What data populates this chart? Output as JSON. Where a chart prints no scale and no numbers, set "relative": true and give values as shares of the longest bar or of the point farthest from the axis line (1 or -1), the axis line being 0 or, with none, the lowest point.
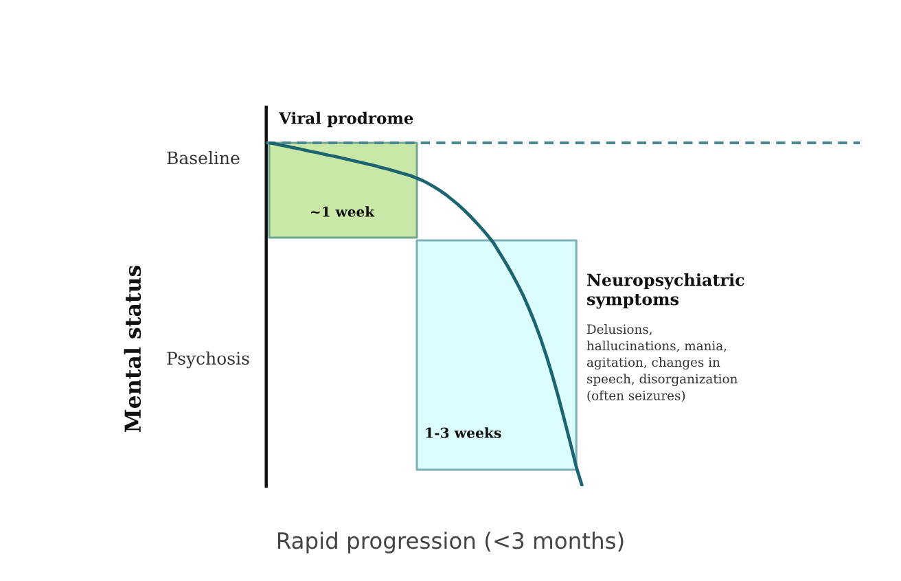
{
  "chart_data": {
    "type": "line",
    "relative": true,
    "xlabel": "Rapid progression (<3 months)",
    "categories": [
      null,
      null,
      null,
      null,
      null,
      null,
      null,
      null,
      null,
      null,
      null,
      null,
      null,
      null,
      null,
      null,
      null,
      null,
      null,
      null,
      null,
      null,
      null,
      null,
      null,
      null,
      null,
      null,
      null,
      null,
      null,
      null,
      null,
      null,
      null,
      null,
      null,
      null,
      null,
      null,
      null,
      null,
      null,
      null,
      null,
      null,
      null,
      null,
      null,
      null,
      null,
      null,
      null,
      null,
      null,
      null,
      null,
      null,
      null,
      null,
      null,
      null,
      null,
      null,
      null,
      null,
      null,
      null,
      null,
      null,
      null,
      null,
      null,
      null,
      null,
      null,
      null,
      null,
      null,
      null,
      null,
      null,
      null,
      null,
      null,
      null,
      null,
      null,
      null,
      null,
      null,
      null,
      null,
      null,
      null,
      null,
      null,
      null,
      null,
      null,
      null
    ],
    "series": [
      {
        "color": "#c9e7a7",
        "values": [
          null,
          null,
          null,
          null,
          null,
          null,
          null,
          null,
          null,
          null,
          null,
          null,
          null,
          null,
          null,
          null,
          null,
          null,
          null,
          null,
          null,
          null,
          null,
          null,
          null,
          null,
          null,
          null,
          null,
          null,
          null,
          null,
          null,
          null,
          null,
          null,
          null,
          null,
          null,
          null,
          null,
          null,
          null,
          null,
          null,
          null,
          null,
          null,
          null,
          null,
          null,
          null,
          null,
          null,
          null,
          null,
          null,
          null,
          null,
          null,
          null,
          null,
          null,
          null,
          null,
          null,
          null,
          null,
          null,
          null,
          null,
          null,
          null,
          null,
          null,
          null,
          null,
          null,
          null,
          null,
          null,
          null,
          null,
          null,
          null,
          null,
          null,
          null,
          null,
          null,
          null,
          null,
          null,
          null,
          null,
          null,
          null,
          null,
          null,
          null,
          null
        ],
        "lower": [
          0.724,
          0.724,
          0.724,
          0.724,
          0.724,
          0.724,
          0.724,
          0.724,
          0.724,
          0.724,
          0.724,
          0.724,
          0.724,
          0.724,
          0.724,
          0.724,
          0.724,
          0.724,
          0.724,
          0.724,
          0.724,
          0.724,
          0.724,
          0.724,
          0.724,
          0.724,
          null,
          null,
          null,
          null,
          null,
          null,
          null,
          null,
          null,
          null,
          null,
          null,
          null,
          null,
          null,
          null,
          null,
          null,
          null,
          null,
          null,
          null,
          null,
          null,
          null,
          null,
          null,
          null,
          null,
          null,
          null,
          null,
          null,
          null,
          null,
          null,
          null,
          null,
          null,
          null,
          null,
          null,
          null,
          null,
          null,
          null,
          null,
          null,
          null,
          null,
          null,
          null,
          null,
          null,
          null,
          null,
          null,
          null,
          null,
          null,
          null,
          null,
          null,
          null,
          null,
          null,
          null,
          null,
          null,
          null,
          null,
          null,
          null,
          null,
          null
        ],
        "upper": [
          1,
          1,
          1,
          1,
          1,
          1,
          1,
          1,
          1,
          1,
          1,
          1,
          1,
          1,
          1,
          1,
          1,
          1,
          1,
          1,
          1,
          1,
          1,
          1,
          1,
          1,
          null,
          null,
          null,
          null,
          null,
          null,
          null,
          null,
          null,
          null,
          null,
          null,
          null,
          null,
          null,
          null,
          null,
          null,
          null,
          null,
          null,
          null,
          null,
          null,
          null,
          null,
          null,
          null,
          null,
          null,
          null,
          null,
          null,
          null,
          null,
          null,
          null,
          null,
          null,
          null,
          null,
          null,
          null,
          null,
          null,
          null,
          null,
          null,
          null,
          null,
          null,
          null,
          null,
          null,
          null,
          null,
          null,
          null,
          null,
          null,
          null,
          null,
          null,
          null,
          null,
          null,
          null,
          null,
          null,
          null,
          null,
          null,
          null,
          null,
          null
        ]
      },
      {
        "color": "#dcfdfd",
        "values": [
          null,
          null,
          null,
          null,
          null,
          null,
          null,
          null,
          null,
          null,
          null,
          null,
          null,
          null,
          null,
          null,
          null,
          null,
          null,
          null,
          null,
          null,
          null,
          null,
          null,
          null,
          null,
          null,
          null,
          null,
          null,
          null,
          null,
          null,
          null,
          null,
          null,
          null,
          null,
          null,
          null,
          null,
          null,
          null,
          null,
          null,
          null,
          null,
          null,
          null,
          null,
          null,
          null,
          null,
          null,
          null,
          null,
          null,
          null,
          null,
          null,
          null,
          null,
          null,
          null,
          null,
          null,
          null,
          null,
          null,
          null,
          null,
          null,
          null,
          null,
          null,
          null,
          null,
          null,
          null,
          null,
          null,
          null,
          null,
          null,
          null,
          null,
          null,
          null,
          null,
          null,
          null,
          null,
          null,
          null,
          null,
          null,
          null,
          null,
          null,
          null
        ],
        "lower": [
          null,
          null,
          null,
          null,
          null,
          null,
          null,
          null,
          null,
          null,
          null,
          null,
          null,
          null,
          null,
          null,
          null,
          null,
          null,
          null,
          null,
          null,
          null,
          null,
          null,
          0.048,
          0.048,
          0.048,
          0.048,
          0.048,
          0.048,
          0.048,
          0.048,
          0.048,
          0.048,
          0.048,
          0.048,
          0.048,
          0.048,
          0.048,
          0.048,
          0.048,
          0.048,
          0.048,
          0.048,
          0.048,
          0.048,
          0.048,
          0.048,
          0.048,
          0.048,
          0.048,
          0.048,
          null,
          null,
          null,
          null,
          null,
          null,
          null,
          null,
          null,
          null,
          null,
          null,
          null,
          null,
          null,
          null,
          null,
          null,
          null,
          null,
          null,
          null,
          null,
          null,
          null,
          null,
          null,
          null,
          null,
          null,
          null,
          null,
          null,
          null,
          null,
          null,
          null,
          null,
          null,
          null,
          null,
          null,
          null,
          null,
          null,
          null,
          null,
          null
        ],
        "upper": [
          null,
          null,
          null,
          null,
          null,
          null,
          null,
          null,
          null,
          null,
          null,
          null,
          null,
          null,
          null,
          null,
          null,
          null,
          null,
          null,
          null,
          null,
          null,
          null,
          null,
          0.716,
          0.716,
          0.716,
          0.716,
          0.716,
          0.716,
          0.716,
          0.716,
          0.716,
          0.716,
          0.716,
          0.716,
          0.716,
          0.716,
          0.716,
          0.716,
          0.716,
          0.716,
          0.716,
          0.716,
          0.716,
          0.716,
          0.716,
          0.716,
          0.716,
          0.716,
          0.716,
          0.716,
          null,
          null,
          null,
          null,
          null,
          null,
          null,
          null,
          null,
          null,
          null,
          null,
          null,
          null,
          null,
          null,
          null,
          null,
          null,
          null,
          null,
          null,
          null,
          null,
          null,
          null,
          null,
          null,
          null,
          null,
          null,
          null,
          null,
          null,
          null,
          null,
          null,
          null,
          null,
          null,
          null,
          null,
          null,
          null,
          null,
          null,
          null,
          null
        ]
      },
      {
        "color": "#1b6470",
        "values": [
          1.0,
          0.997,
          0.993,
          0.99,
          0.986,
          0.983,
          0.979,
          0.975,
          0.972,
          0.968,
          0.964,
          0.961,
          0.957,
          0.953,
          0.949,
          0.945,
          0.941,
          0.937,
          0.933,
          0.928,
          0.924,
          0.919,
          0.914,
          0.909,
          0.904,
          0.897,
          0.89,
          0.881,
          0.871,
          0.86,
          0.848,
          0.834,
          0.82,
          0.804,
          0.787,
          0.769,
          0.75,
          0.73,
          0.708,
          0.68,
          0.652,
          0.622,
          0.59,
          0.556,
          0.517,
          0.475,
          0.428,
          0.376,
          0.319,
          0.258,
          0.192,
          0.125,
          0.056,
          0,
          null,
          null,
          null,
          null,
          null,
          null,
          null,
          null,
          null,
          null,
          null,
          null,
          null,
          null,
          null,
          null,
          null,
          null,
          null,
          null,
          null,
          null,
          null,
          null,
          null,
          null,
          null,
          null,
          null,
          null,
          null,
          null,
          null,
          null,
          null,
          null,
          null,
          null,
          null,
          null,
          null,
          null,
          null,
          null,
          null,
          null,
          null
        ]
      }
    ],
    "ref_lines": [
      {
        "axis": "y",
        "value": 1,
        "line_style": "dashed",
        "color": "#4b8792"
      }
    ],
    "annotations": [
      "Baseline",
      "Psychosis",
      "Viral prodrome",
      "~1 week",
      "1-3 weeks",
      "Neuropsychiatric\nsymptoms",
      "Delusions,\nhallucinations, mania,\nagitation, changes in\nspeech, disorganization\n(often seizures)",
      "Mental status"
    ]
  }
}
